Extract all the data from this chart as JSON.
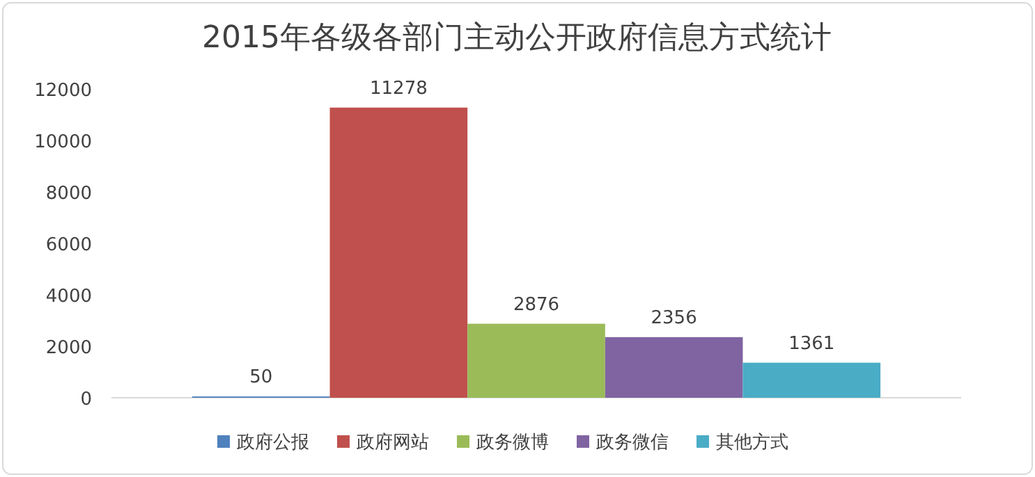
{
  "chart_data": {
    "type": "bar",
    "title": "2015年各级各部门主动公开政府信息方式统计",
    "categories": [
      null
    ],
    "series": [
      {
        "name": "政府公报",
        "color": "#4f81bd",
        "values": [
          50
        ]
      },
      {
        "name": "政府网站",
        "color": "#c0504d",
        "values": [
          11278
        ]
      },
      {
        "name": "政务微博",
        "color": "#9bbb59",
        "values": [
          2876
        ]
      },
      {
        "name": "政务微信",
        "color": "#8064a2",
        "values": [
          2356
        ]
      },
      {
        "name": "其他方式",
        "color": "#4bacc6",
        "values": [
          1361
        ]
      }
    ],
    "ylim": [
      0,
      12000
    ],
    "yticks": [
      0,
      2000,
      4000,
      6000,
      8000,
      10000,
      12000
    ],
    "data_labels": true,
    "legend": "bottom"
  }
}
